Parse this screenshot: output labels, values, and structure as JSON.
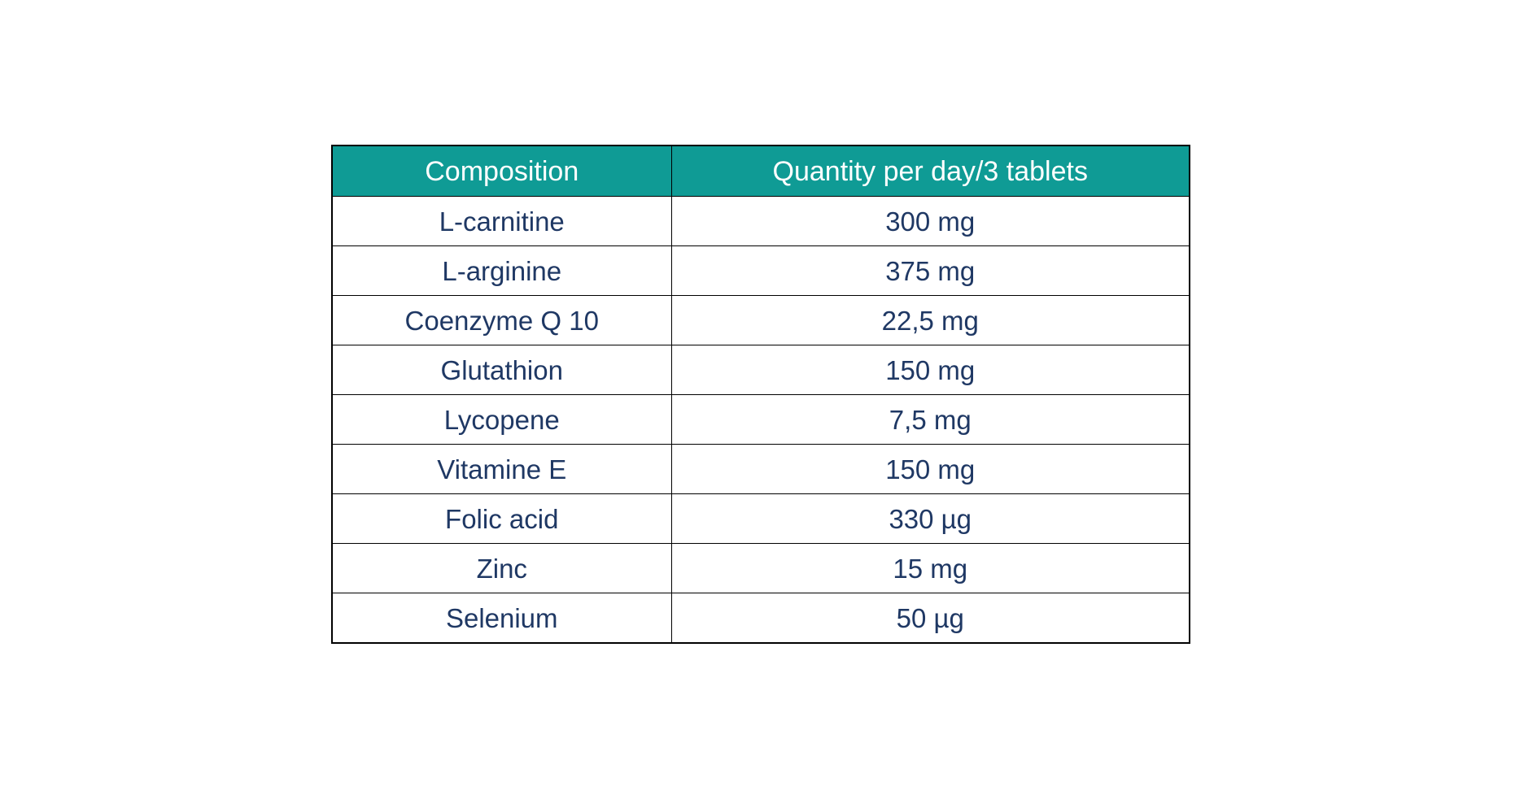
{
  "page": {
    "background_color": "#FFFFFF"
  },
  "table": {
    "columns": [
      {
        "label": "Composition"
      },
      {
        "label": "Quantity per day/3 tablets"
      }
    ],
    "rows": [
      {
        "composition": "L-carnitine",
        "quantity": "300 mg"
      },
      {
        "composition": "L-arginine",
        "quantity": "375 mg"
      },
      {
        "composition": "Coenzyme Q 10",
        "quantity": "22,5 mg"
      },
      {
        "composition": "Glutathion",
        "quantity": "150 mg"
      },
      {
        "composition": "Lycopene",
        "quantity": "7,5 mg"
      },
      {
        "composition": "Vitamine E",
        "quantity": "150 mg"
      },
      {
        "composition": "Folic acid",
        "quantity": "330 µg"
      },
      {
        "composition": "Zinc",
        "quantity": "15 mg"
      },
      {
        "composition": "Selenium",
        "quantity": "50 µg"
      }
    ],
    "colors": {
      "header_background": "#0F9B95",
      "header_text": "#FFFFFF",
      "body_text": "#1F3864",
      "border": "#000000"
    }
  }
}
